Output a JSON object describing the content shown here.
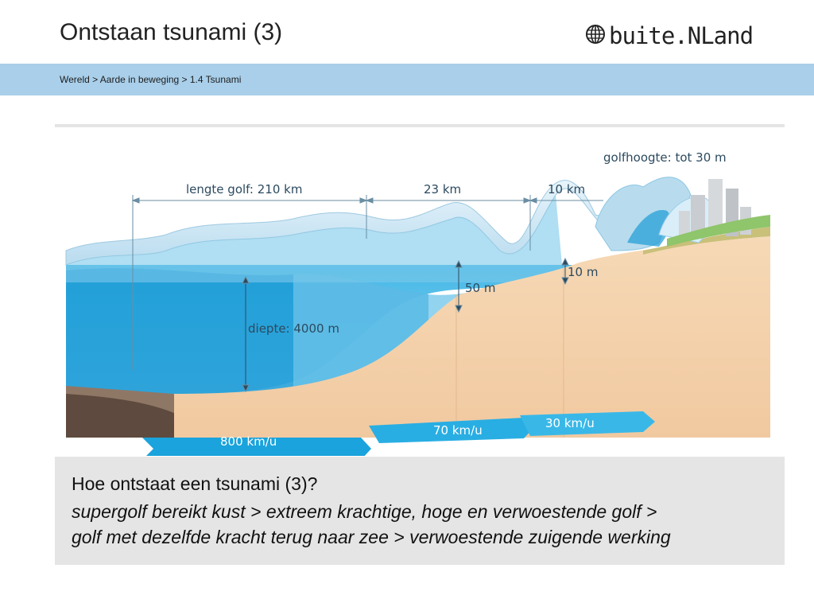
{
  "header": {
    "title": "Ontstaan tsunami (3)",
    "logo_text": "buite.NLand"
  },
  "breadcrumb": "Wereld > Aarde in beweging > 1.4 Tsunami",
  "diagram": {
    "labels": {
      "wave_height": "golfhoogte: tot 30 m",
      "wave_length": "lengte golf: 210 km",
      "span_23": "23 km",
      "span_10": "10 km",
      "height_50": "50 m",
      "height_10": "10 m",
      "depth": "diepte: 4000 m"
    },
    "speeds": [
      "800 km/u",
      "70 km/u",
      "30 km/u"
    ]
  },
  "caption": {
    "question": "Hoe ontstaat een tsunami (3)?",
    "line1": "supergolf bereikt kust > extreem krachtige, hoge en verwoestende golf >",
    "line2": "golf met dezelfde kracht terug naar zee > verwoestende zuigende werking"
  },
  "colors": {
    "breadcrumb_bar": "#a9cfea",
    "ocean_deep": "#1c9bd6",
    "ocean_light": "#8fd0ee",
    "seabed": "#f4d2ad",
    "arrow": "#1aa3dc"
  }
}
